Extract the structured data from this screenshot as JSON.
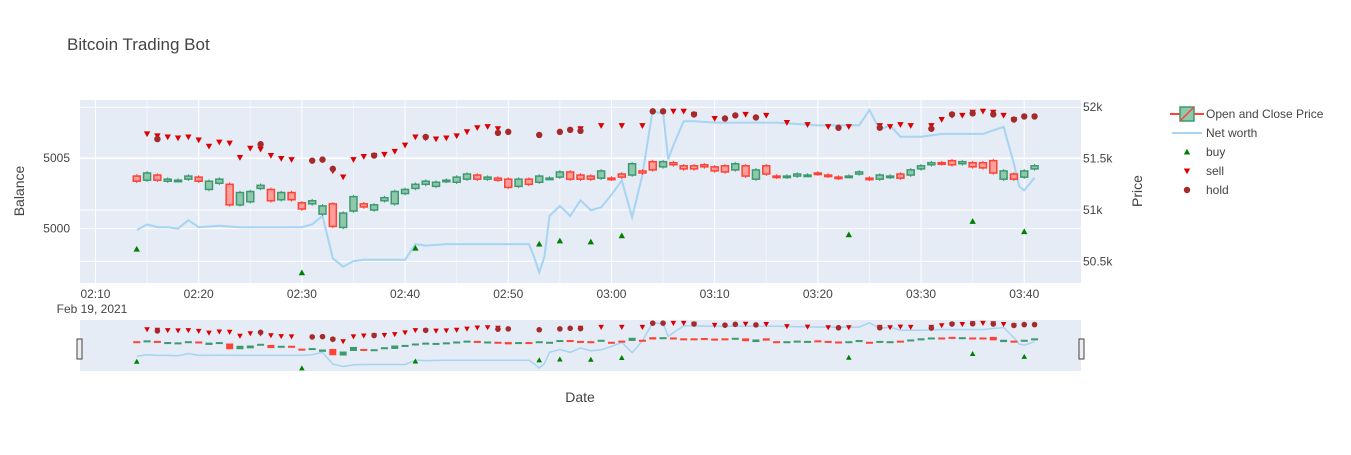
{
  "chart_data": {
    "type": "candlestick",
    "title": "Bitcoin Trading Bot",
    "xlabel": "Date",
    "y_left_label": "Balance",
    "y_right_label": "Price",
    "x_tick_labels": [
      "02:10",
      "02:20",
      "02:30",
      "02:40",
      "02:50",
      "03:00",
      "03:10",
      "03:20",
      "03:30",
      "03:40"
    ],
    "x_date_label": "Feb 19, 2021",
    "x_range_minutes": [
      8.5,
      105.5
    ],
    "y_left_ticks": [
      {
        "value": 5000,
        "label": "5000"
      },
      {
        "value": 5005,
        "label": "5005"
      }
    ],
    "y_left_range": [
      4996.15,
      5009.1
    ],
    "y_right_ticks": [
      {
        "value": 50500,
        "label": "50.5k"
      },
      {
        "value": 51000,
        "label": "51k"
      },
      {
        "value": 51500,
        "label": "51.5k"
      },
      {
        "value": 52000,
        "label": "52k"
      }
    ],
    "y_right_range": [
      50290,
      52070
    ],
    "grid": true,
    "legend_position": "right",
    "rangeslider": true,
    "colors": {
      "increasing": "#3d9970",
      "decreasing": "#ff4136",
      "net_worth": "#a6d4f2",
      "buy": "#008000",
      "sell": "#dd0000",
      "hold": "#a52a2a",
      "plot_bg": "#e5ecf6"
    },
    "legend": [
      {
        "name": "Open and Close Price",
        "kind": "candle"
      },
      {
        "name": "Net worth",
        "kind": "line"
      },
      {
        "name": "buy",
        "kind": "buy"
      },
      {
        "name": "sell",
        "kind": "sell"
      },
      {
        "name": "hold",
        "kind": "hold"
      }
    ],
    "series": [
      {
        "name": "Open and Close Price",
        "type": "candlestick",
        "x_minutes": [
          14,
          15,
          16,
          17,
          18,
          19,
          20,
          21,
          22,
          23,
          24,
          25,
          26,
          27,
          28,
          29,
          30,
          31,
          32,
          33,
          34,
          35,
          36,
          37,
          38,
          39,
          40,
          41,
          42,
          43,
          44,
          45,
          46,
          47,
          48,
          49,
          50,
          51,
          52,
          53,
          54,
          55,
          56,
          57,
          58,
          59,
          60,
          61,
          62,
          63,
          64,
          65,
          66,
          67,
          68,
          69,
          70,
          71,
          72,
          73,
          74,
          75,
          76,
          77,
          78,
          79,
          80,
          81,
          82,
          83,
          84,
          85,
          86,
          87,
          88,
          89,
          90,
          91,
          92,
          93,
          94,
          95,
          96,
          97,
          98,
          99,
          100,
          101
        ],
        "open": [
          51330,
          51290,
          51340,
          51280,
          51290,
          51300,
          51320,
          51200,
          51260,
          51250,
          51050,
          51080,
          51210,
          51200,
          51100,
          51170,
          51070,
          51060,
          50960,
          51060,
          50830,
          50990,
          51060,
          51000,
          51090,
          51060,
          51160,
          51210,
          51250,
          51230,
          51280,
          51270,
          51300,
          51340,
          51300,
          51310,
          51300,
          51230,
          51300,
          51270,
          51310,
          51320,
          51370,
          51340,
          51330,
          51310,
          51310,
          51350,
          51340,
          51380,
          51470,
          51420,
          51460,
          51430,
          51430,
          51440,
          51420,
          51430,
          51390,
          51430,
          51300,
          51430,
          51330,
          51320,
          51330,
          51340,
          51360,
          51340,
          51320,
          51330,
          51350,
          51310,
          51300,
          51320,
          51350,
          51340,
          51400,
          51440,
          51460,
          51480,
          51450,
          51460,
          51460,
          51480,
          51300,
          51350,
          51320,
          51400
        ],
        "close": [
          51280,
          51360,
          51290,
          51300,
          51290,
          51330,
          51280,
          51280,
          51300,
          51050,
          51170,
          51180,
          51240,
          51090,
          51170,
          51100,
          51010,
          51090,
          51040,
          50840,
          50970,
          51130,
          51030,
          51050,
          51120,
          51180,
          51200,
          51250,
          51280,
          51270,
          51290,
          51320,
          51350,
          51300,
          51320,
          51290,
          51220,
          51300,
          51250,
          51330,
          51310,
          51370,
          51300,
          51300,
          51300,
          51380,
          51300,
          51320,
          51450,
          51360,
          51390,
          51470,
          51440,
          51400,
          51400,
          51420,
          51380,
          51370,
          51450,
          51330,
          51390,
          51350,
          51320,
          51330,
          51350,
          51340,
          51350,
          51330,
          51310,
          51330,
          51370,
          51300,
          51340,
          51330,
          51310,
          51390,
          51430,
          51460,
          51450,
          51440,
          51470,
          51420,
          51410,
          51360,
          51380,
          51300,
          51380,
          51430
        ]
      },
      {
        "name": "Net worth",
        "type": "line",
        "x_minutes": [
          14,
          15,
          16,
          17,
          18,
          19,
          20,
          22,
          24,
          26,
          28,
          30,
          31,
          32,
          33,
          34,
          35,
          36,
          38,
          40,
          41,
          42,
          44,
          46,
          48,
          50,
          52,
          52.5,
          53,
          53.5,
          54,
          55,
          56,
          57,
          58,
          59,
          60,
          61,
          62,
          63,
          64,
          64.5,
          65,
          65.5,
          66,
          67,
          68,
          70,
          72,
          74,
          76,
          80,
          84,
          85,
          86,
          87,
          88,
          90,
          92,
          94,
          96,
          98,
          99,
          99.5,
          100,
          101
        ],
        "values": [
          4999.9,
          5000.3,
          5000.1,
          5000.1,
          5000.0,
          5000.6,
          5000.1,
          5000.2,
          5000.1,
          5000.1,
          5000.1,
          5000.1,
          5000.3,
          5000.9,
          4997.9,
          4997.3,
          4997.7,
          4997.8,
          4997.8,
          4997.8,
          4998.9,
          4998.8,
          4998.9,
          4998.9,
          4998.9,
          4998.9,
          4998.9,
          4998.0,
          4996.9,
          4998.0,
          5000.9,
          5001.6,
          5000.9,
          5002.0,
          5001.3,
          5001.5,
          5002.4,
          5003.4,
          5000.8,
          5003.8,
          5008.4,
          5008.2,
          5008.2,
          5004.9,
          5005.9,
          5007.6,
          5007.6,
          5007.5,
          5007.5,
          5007.5,
          5007.5,
          5007.3,
          5007.3,
          5008.4,
          5007.0,
          5007.3,
          5006.5,
          5006.5,
          5006.7,
          5006.7,
          5006.7,
          5007.2,
          5004.6,
          5003.0,
          5002.7,
          5003.6
        ]
      },
      {
        "name": "buy",
        "type": "scatter",
        "marker": "triangle-up",
        "points": [
          [
            14,
            50620
          ],
          [
            30,
            50390
          ],
          [
            41,
            50630
          ],
          [
            53,
            50670
          ],
          [
            55,
            50700
          ],
          [
            58,
            50690
          ],
          [
            61,
            50750
          ],
          [
            83,
            50760
          ],
          [
            95,
            50890
          ],
          [
            100,
            50790
          ]
        ]
      },
      {
        "name": "sell",
        "type": "scatter",
        "marker": "triangle-down",
        "points": [
          [
            15,
            51740
          ],
          [
            16,
            51720
          ],
          [
            17,
            51710
          ],
          [
            18,
            51700
          ],
          [
            19,
            51710
          ],
          [
            20,
            51680
          ],
          [
            21,
            51620
          ],
          [
            22,
            51660
          ],
          [
            23,
            51650
          ],
          [
            24,
            51510
          ],
          [
            25,
            51600
          ],
          [
            26,
            51590
          ],
          [
            27,
            51530
          ],
          [
            28,
            51500
          ],
          [
            29,
            51490
          ],
          [
            33,
            51380
          ],
          [
            34,
            51320
          ],
          [
            35,
            51490
          ],
          [
            36,
            51520
          ],
          [
            37,
            51530
          ],
          [
            38,
            51540
          ],
          [
            39,
            51570
          ],
          [
            40,
            51630
          ],
          [
            41,
            51710
          ],
          [
            42,
            51700
          ],
          [
            43,
            51690
          ],
          [
            44,
            51700
          ],
          [
            45,
            51720
          ],
          [
            46,
            51760
          ],
          [
            47,
            51800
          ],
          [
            48,
            51810
          ],
          [
            49,
            51790
          ],
          [
            57,
            51790
          ],
          [
            59,
            51820
          ],
          [
            61,
            51820
          ],
          [
            63,
            51820
          ],
          [
            66,
            51960
          ],
          [
            67,
            51960
          ],
          [
            68,
            51930
          ],
          [
            70,
            51890
          ],
          [
            73,
            51930
          ],
          [
            75,
            51920
          ],
          [
            77,
            51850
          ],
          [
            79,
            51830
          ],
          [
            81,
            51810
          ],
          [
            83,
            51810
          ],
          [
            86,
            51820
          ],
          [
            87,
            51810
          ],
          [
            88,
            51830
          ],
          [
            89,
            51820
          ],
          [
            91,
            51820
          ],
          [
            92,
            51880
          ],
          [
            93,
            51920
          ],
          [
            94,
            51920
          ],
          [
            95,
            51950
          ],
          [
            96,
            51960
          ],
          [
            97,
            51950
          ],
          [
            98,
            51920
          ],
          [
            99,
            51880
          ]
        ]
      },
      {
        "name": "hold",
        "type": "scatter",
        "marker": "circle",
        "points": [
          [
            16,
            51690
          ],
          [
            26,
            51640
          ],
          [
            31,
            51480
          ],
          [
            32,
            51490
          ],
          [
            33,
            51400
          ],
          [
            37,
            51530
          ],
          [
            42,
            51710
          ],
          [
            49,
            51750
          ],
          [
            50,
            51760
          ],
          [
            53,
            51730
          ],
          [
            55,
            51760
          ],
          [
            56,
            51780
          ],
          [
            57,
            51770
          ],
          [
            64,
            51960
          ],
          [
            65,
            51960
          ],
          [
            68,
            51930
          ],
          [
            71,
            51890
          ],
          [
            72,
            51920
          ],
          [
            74,
            51900
          ],
          [
            82,
            51800
          ],
          [
            86,
            51800
          ],
          [
            91,
            51790
          ],
          [
            93,
            51930
          ],
          [
            95,
            51940
          ],
          [
            97,
            51930
          ],
          [
            99,
            51880
          ],
          [
            100,
            51910
          ],
          [
            101,
            51910
          ]
        ]
      }
    ]
  }
}
